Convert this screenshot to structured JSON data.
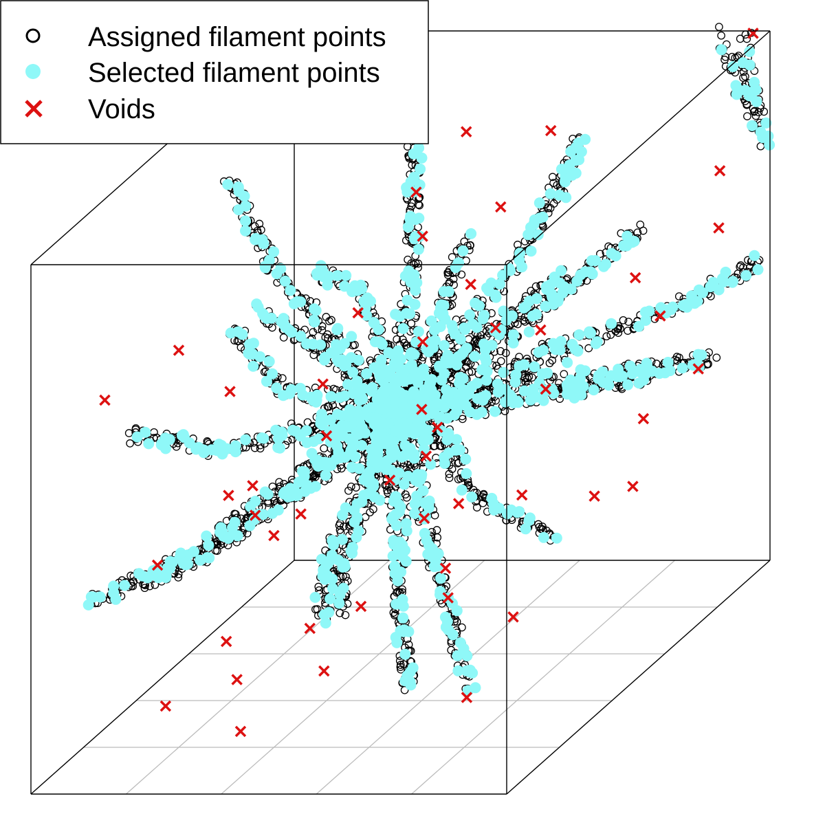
{
  "chart_data": {
    "type": "scatter",
    "projection": "3d-cube",
    "title": "",
    "xlabel": "",
    "ylabel": "",
    "zlabel": "",
    "box": true,
    "floor_grid": true,
    "legend": {
      "placement": "top-left",
      "entries": [
        {
          "label": "Assigned filament points",
          "marker": "open-circle",
          "color": "#000000"
        },
        {
          "label": "Selected filament points",
          "marker": "filled-circle",
          "color": "#8ff8f8"
        },
        {
          "label": "Voids",
          "marker": "cross",
          "color": "#dd1111"
        }
      ]
    },
    "filaments": [
      {
        "path": [
          [
            0.5,
            0.5,
            0.5
          ],
          [
            0.4,
            0.55,
            0.85
          ],
          [
            0.36,
            0.6,
            1.0
          ]
        ]
      },
      {
        "path": [
          [
            0.5,
            0.5,
            0.5
          ],
          [
            0.66,
            0.58,
            0.82
          ],
          [
            0.72,
            0.62,
            1.0
          ]
        ]
      },
      {
        "path": [
          [
            0.5,
            0.5,
            0.5
          ],
          [
            0.9,
            0.55,
            0.86
          ],
          [
            1.0,
            0.58,
            0.96
          ]
        ]
      },
      {
        "path": [
          [
            0.5,
            0.5,
            0.5
          ],
          [
            0.74,
            0.4,
            0.9
          ],
          [
            0.88,
            0.38,
            1.0
          ]
        ]
      },
      {
        "path": [
          [
            0.5,
            0.5,
            0.5
          ],
          [
            0.85,
            0.52,
            0.55
          ],
          [
            1.0,
            0.55,
            0.55
          ]
        ]
      },
      {
        "path": [
          [
            0.5,
            0.5,
            0.5
          ],
          [
            0.8,
            0.45,
            0.25
          ],
          [
            0.98,
            0.4,
            0.2
          ]
        ]
      },
      {
        "path": [
          [
            0.5,
            0.5,
            0.5
          ],
          [
            0.62,
            0.4,
            0.05
          ],
          [
            0.66,
            0.35,
            0.0
          ]
        ]
      },
      {
        "path": [
          [
            0.5,
            0.5,
            0.5
          ],
          [
            0.3,
            0.4,
            0.1
          ],
          [
            0.25,
            0.4,
            0.0
          ]
        ]
      },
      {
        "path": [
          [
            0.5,
            0.5,
            0.5
          ],
          [
            0.2,
            0.35,
            0.2
          ],
          [
            0.05,
            0.3,
            0.15
          ]
        ]
      },
      {
        "path": [
          [
            0.5,
            0.5,
            0.5
          ],
          [
            0.15,
            0.45,
            0.45
          ],
          [
            0.0,
            0.5,
            0.4
          ]
        ]
      },
      {
        "path": [
          [
            0.5,
            0.5,
            0.5
          ],
          [
            0.25,
            0.55,
            0.65
          ],
          [
            0.1,
            0.6,
            0.7
          ]
        ]
      },
      {
        "path": [
          [
            0.5,
            0.5,
            0.5
          ],
          [
            0.3,
            0.2,
            0.6
          ],
          [
            0.25,
            0.05,
            0.65
          ]
        ]
      },
      {
        "path": [
          [
            0.5,
            0.5,
            0.5
          ],
          [
            0.55,
            0.2,
            0.4
          ],
          [
            0.6,
            0.05,
            0.35
          ]
        ]
      },
      {
        "path": [
          [
            0.5,
            0.5,
            0.5
          ],
          [
            0.7,
            0.25,
            0.3
          ],
          [
            0.78,
            0.1,
            0.25
          ]
        ]
      },
      {
        "path": [
          [
            0.5,
            0.5,
            0.5
          ],
          [
            0.5,
            0.8,
            0.55
          ],
          [
            0.5,
            1.0,
            0.55
          ]
        ]
      },
      {
        "path": [
          [
            0.5,
            0.5,
            0.5
          ],
          [
            0.3,
            0.8,
            0.4
          ],
          [
            0.2,
            0.98,
            0.4
          ]
        ]
      },
      {
        "path": [
          [
            0.5,
            0.5,
            0.5
          ],
          [
            0.7,
            0.75,
            0.6
          ],
          [
            0.8,
            0.95,
            0.65
          ]
        ]
      },
      {
        "path": [
          [
            0.5,
            0.5,
            0.5
          ],
          [
            0.6,
            0.6,
            0.2
          ],
          [
            0.6,
            0.7,
            0.0
          ]
        ]
      },
      {
        "path": [
          [
            0.5,
            0.5,
            0.5
          ],
          [
            0.4,
            0.3,
            0.85
          ],
          [
            0.35,
            0.2,
            1.0
          ]
        ]
      },
      {
        "path": [
          [
            0.5,
            0.5,
            0.5
          ],
          [
            0.2,
            0.55,
            0.9
          ],
          [
            0.05,
            0.55,
            1.0
          ]
        ]
      },
      {
        "path": [
          [
            0.5,
            0.5,
            0.5
          ],
          [
            0.75,
            0.7,
            0.35
          ],
          [
            0.95,
            0.85,
            0.3
          ]
        ]
      },
      {
        "path": [
          [
            0.5,
            0.5,
            0.5
          ],
          [
            0.45,
            0.7,
            0.15
          ],
          [
            0.4,
            0.85,
            0.05
          ]
        ]
      },
      {
        "path": [
          [
            0.92,
            0.98,
            1.0
          ],
          [
            1.0,
            0.8,
            0.98
          ]
        ]
      }
    ],
    "voids": [
      [
        0.5,
        0.92,
        0.75
      ],
      [
        0.65,
        0.9,
        0.8
      ],
      [
        0.45,
        0.85,
        0.65
      ],
      [
        0.6,
        0.8,
        0.7
      ],
      [
        0.95,
        0.78,
        0.9
      ],
      [
        0.2,
        0.75,
        0.2
      ],
      [
        0.1,
        0.7,
        0.1
      ],
      [
        0.28,
        0.65,
        0.25
      ],
      [
        0.42,
        0.62,
        0.35
      ],
      [
        0.6,
        0.55,
        0.4
      ],
      [
        0.75,
        0.5,
        0.6
      ],
      [
        0.88,
        0.55,
        0.8
      ],
      [
        0.9,
        0.4,
        0.7
      ],
      [
        0.3,
        0.45,
        0.3
      ],
      [
        0.4,
        0.5,
        0.4
      ],
      [
        0.55,
        0.45,
        0.55
      ],
      [
        0.65,
        0.35,
        0.45
      ],
      [
        0.1,
        0.3,
        0.3
      ],
      [
        0.25,
        0.35,
        0.4
      ],
      [
        0.45,
        0.35,
        0.55
      ],
      [
        0.55,
        0.3,
        0.5
      ],
      [
        0.7,
        0.3,
        0.6
      ],
      [
        0.85,
        0.25,
        0.75
      ],
      [
        0.3,
        0.2,
        0.2
      ],
      [
        0.35,
        0.15,
        0.15
      ],
      [
        0.5,
        0.2,
        0.35
      ],
      [
        0.65,
        0.25,
        0.4
      ],
      [
        0.2,
        0.1,
        0.15
      ],
      [
        0.45,
        0.1,
        0.3
      ],
      [
        0.6,
        0.15,
        0.5
      ],
      [
        0.33,
        0.03,
        0.2
      ],
      [
        0.75,
        0.05,
        0.3
      ],
      [
        0.8,
        0.6,
        0.85
      ],
      [
        0.62,
        0.72,
        0.55
      ],
      [
        0.48,
        0.78,
        0.62
      ],
      [
        0.58,
        0.66,
        0.44
      ],
      [
        0.7,
        0.66,
        0.5
      ],
      [
        0.4,
        0.4,
        0.2
      ],
      [
        0.52,
        0.26,
        0.12
      ],
      [
        0.36,
        0.52,
        0.1
      ],
      [
        0.88,
        0.32,
        0.55
      ],
      [
        0.96,
        0.45,
        0.8
      ],
      [
        0.92,
        0.65,
        0.95
      ],
      [
        0.97,
        1.0,
        0.99
      ],
      [
        0.3,
        0.6,
        0.7
      ],
      [
        0.72,
        0.55,
        0.2
      ],
      [
        0.85,
        0.7,
        0.4
      ],
      [
        0.18,
        0.22,
        0.7
      ],
      [
        0.82,
        0.18,
        0.35
      ]
    ]
  }
}
